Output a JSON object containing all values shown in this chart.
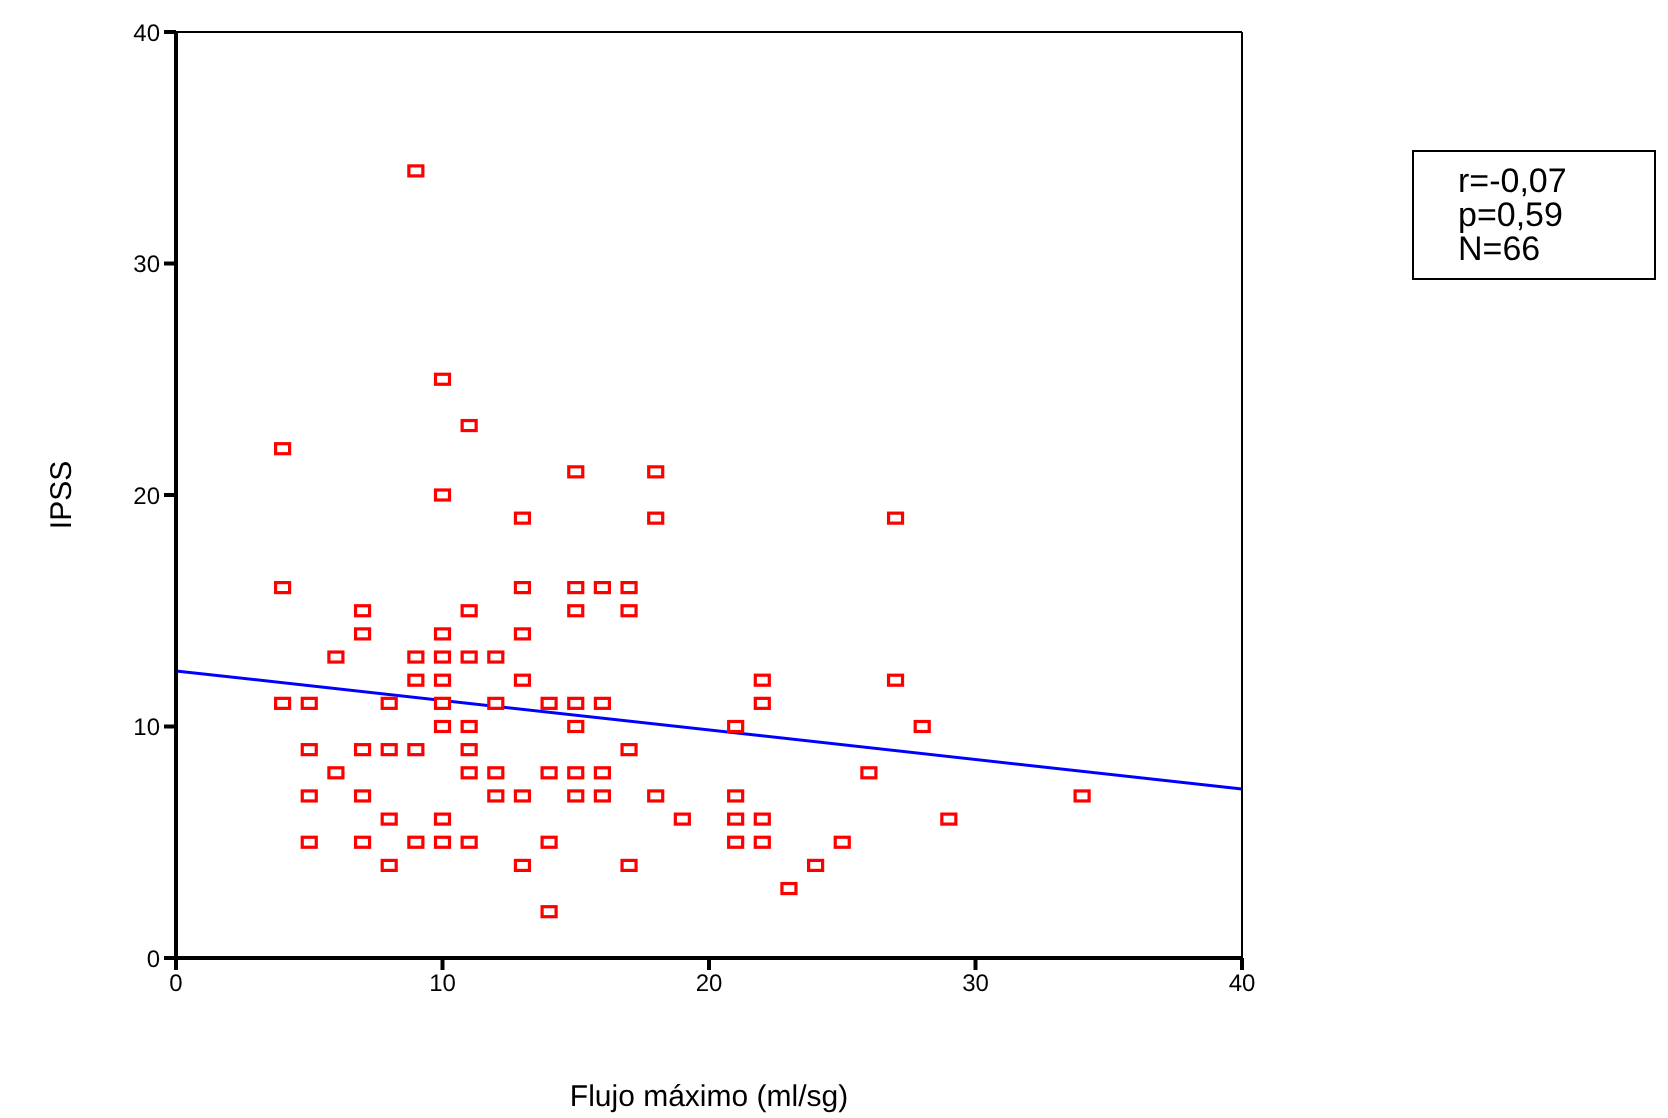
{
  "chart_data": {
    "type": "scatter",
    "xlabel": "Flujo máximo (ml/sg)",
    "ylabel": "IPSS",
    "annotations": [
      "r=-0,07",
      "p=0,59",
      "N=66"
    ],
    "xlim": [
      0,
      40
    ],
    "ylim": [
      0,
      40
    ],
    "xticks": [
      0,
      10,
      20,
      30,
      40
    ],
    "yticks": [
      0,
      10,
      20,
      30,
      40
    ],
    "series": [
      {
        "marker": "square",
        "color": "#ff0000",
        "x": [
          9,
          10,
          11,
          4,
          15,
          18,
          10,
          13,
          18,
          27,
          4,
          13,
          15,
          16,
          17,
          7,
          11,
          15,
          17,
          7,
          10,
          13,
          6,
          9,
          10,
          11,
          12,
          9,
          10,
          13,
          22,
          27,
          4,
          5,
          8,
          10,
          12,
          14,
          15,
          16,
          22,
          10,
          11,
          15,
          21,
          28,
          5,
          7,
          8,
          9,
          11,
          17,
          6,
          11,
          12,
          14,
          15,
          16,
          26,
          5,
          7,
          12,
          13,
          15,
          16,
          18,
          21,
          34,
          8,
          10,
          19,
          21,
          22,
          29,
          5,
          7,
          9,
          10,
          11,
          14,
          21,
          22,
          25,
          8,
          13,
          17,
          24,
          23,
          14
        ],
        "values": [
          34,
          25,
          23,
          22,
          21,
          21,
          20,
          19,
          19,
          19,
          16,
          16,
          16,
          16,
          16,
          15,
          15,
          15,
          15,
          14,
          14,
          14,
          13,
          13,
          13,
          13,
          13,
          12,
          12,
          12,
          12,
          12,
          11,
          11,
          11,
          11,
          11,
          11,
          11,
          11,
          11,
          10,
          10,
          10,
          10,
          10,
          9,
          9,
          9,
          9,
          9,
          9,
          8,
          8,
          8,
          8,
          8,
          8,
          8,
          7,
          7,
          7,
          7,
          7,
          7,
          7,
          7,
          7,
          6,
          6,
          6,
          6,
          6,
          6,
          5,
          5,
          5,
          5,
          5,
          5,
          5,
          5,
          5,
          4,
          4,
          4,
          4,
          3,
          2
        ]
      },
      {
        "type": "line",
        "marker": "none",
        "color": "#0000ff",
        "x": [
          0,
          40
        ],
        "values": [
          12.4,
          7.3
        ]
      }
    ]
  }
}
